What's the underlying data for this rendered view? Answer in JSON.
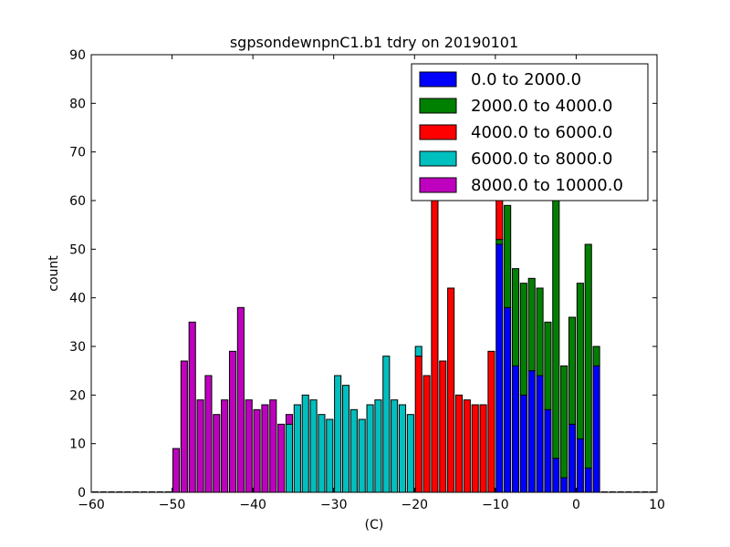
{
  "chart_data": {
    "type": "bar",
    "title": "sgpsondewnpnC1.b1 tdry on 20190101",
    "xlabel": "(C)",
    "ylabel": "count",
    "xlim": [
      -60,
      10
    ],
    "ylim": [
      0,
      90
    ],
    "xticks": [
      -60,
      -50,
      -40,
      -30,
      -20,
      -10,
      0,
      10
    ],
    "xtick_labels": [
      "−60",
      "−50",
      "−40",
      "−30",
      "−20",
      "−10",
      "0",
      "10"
    ],
    "yticks": [
      0,
      10,
      20,
      30,
      40,
      50,
      60,
      70,
      80,
      90
    ],
    "ytick_labels": [
      "0",
      "10",
      "20",
      "30",
      "40",
      "50",
      "60",
      "70",
      "80",
      "90"
    ],
    "grid": false,
    "legend_position": "top-right",
    "bin_width": 1,
    "stacked": true,
    "series": [
      {
        "name": "0.0 to 2000.0",
        "color": "#0000ff",
        "bins": [
          {
            "x": -10,
            "y": 51
          },
          {
            "x": -9,
            "y": 38
          },
          {
            "x": -8,
            "y": 26
          },
          {
            "x": -7,
            "y": 20
          },
          {
            "x": -6,
            "y": 25
          },
          {
            "x": -5,
            "y": 24
          },
          {
            "x": -4,
            "y": 17
          },
          {
            "x": -3,
            "y": 7
          },
          {
            "x": -2,
            "y": 3
          },
          {
            "x": -1,
            "y": 14
          },
          {
            "x": 0,
            "y": 11
          },
          {
            "x": 1,
            "y": 5
          },
          {
            "x": 2,
            "y": 26
          }
        ]
      },
      {
        "name": "2000.0 to 4000.0",
        "color": "#008000",
        "bins": [
          {
            "x": -10,
            "y": 1
          },
          {
            "x": -9,
            "y": 21
          },
          {
            "x": -8,
            "y": 20
          },
          {
            "x": -7,
            "y": 23
          },
          {
            "x": -6,
            "y": 19
          },
          {
            "x": -5,
            "y": 18
          },
          {
            "x": -4,
            "y": 18
          },
          {
            "x": -3,
            "y": 54
          },
          {
            "x": -2,
            "y": 23
          },
          {
            "x": -1,
            "y": 22
          },
          {
            "x": 0,
            "y": 32
          },
          {
            "x": 1,
            "y": 46
          },
          {
            "x": 2,
            "y": 4
          }
        ]
      },
      {
        "name": "4000.0 to 6000.0",
        "color": "#ff0000",
        "bins": [
          {
            "x": -20,
            "y": 28
          },
          {
            "x": -19,
            "y": 24
          },
          {
            "x": -18,
            "y": 60
          },
          {
            "x": -17,
            "y": 27
          },
          {
            "x": -16,
            "y": 42
          },
          {
            "x": -15,
            "y": 20
          },
          {
            "x": -14,
            "y": 19
          },
          {
            "x": -13,
            "y": 18
          },
          {
            "x": -12,
            "y": 18
          },
          {
            "x": -11,
            "y": 29
          },
          {
            "x": -10,
            "y": 28
          }
        ]
      },
      {
        "name": "6000.0 to 8000.0",
        "color": "#00bfbf",
        "bins": [
          {
            "x": -36,
            "y": 14
          },
          {
            "x": -35,
            "y": 18
          },
          {
            "x": -34,
            "y": 20
          },
          {
            "x": -33,
            "y": 19
          },
          {
            "x": -32,
            "y": 16
          },
          {
            "x": -31,
            "y": 15
          },
          {
            "x": -30,
            "y": 24
          },
          {
            "x": -29,
            "y": 22
          },
          {
            "x": -28,
            "y": 17
          },
          {
            "x": -27,
            "y": 15
          },
          {
            "x": -26,
            "y": 18
          },
          {
            "x": -25,
            "y": 19
          },
          {
            "x": -24,
            "y": 28
          },
          {
            "x": -23,
            "y": 19
          },
          {
            "x": -22,
            "y": 18
          },
          {
            "x": -21,
            "y": 16
          },
          {
            "x": -20,
            "y": 2
          }
        ]
      },
      {
        "name": "8000.0 to 10000.0",
        "color": "#bf00bf",
        "bins": [
          {
            "x": -50,
            "y": 9
          },
          {
            "x": -49,
            "y": 27
          },
          {
            "x": -48,
            "y": 35
          },
          {
            "x": -47,
            "y": 19
          },
          {
            "x": -46,
            "y": 24
          },
          {
            "x": -45,
            "y": 16
          },
          {
            "x": -44,
            "y": 19
          },
          {
            "x": -43,
            "y": 29
          },
          {
            "x": -42,
            "y": 38
          },
          {
            "x": -41,
            "y": 19
          },
          {
            "x": -40,
            "y": 17
          },
          {
            "x": -39,
            "y": 18
          },
          {
            "x": -38,
            "y": 19
          },
          {
            "x": -37,
            "y": 14
          },
          {
            "x": -36,
            "y": 2
          }
        ]
      }
    ]
  }
}
